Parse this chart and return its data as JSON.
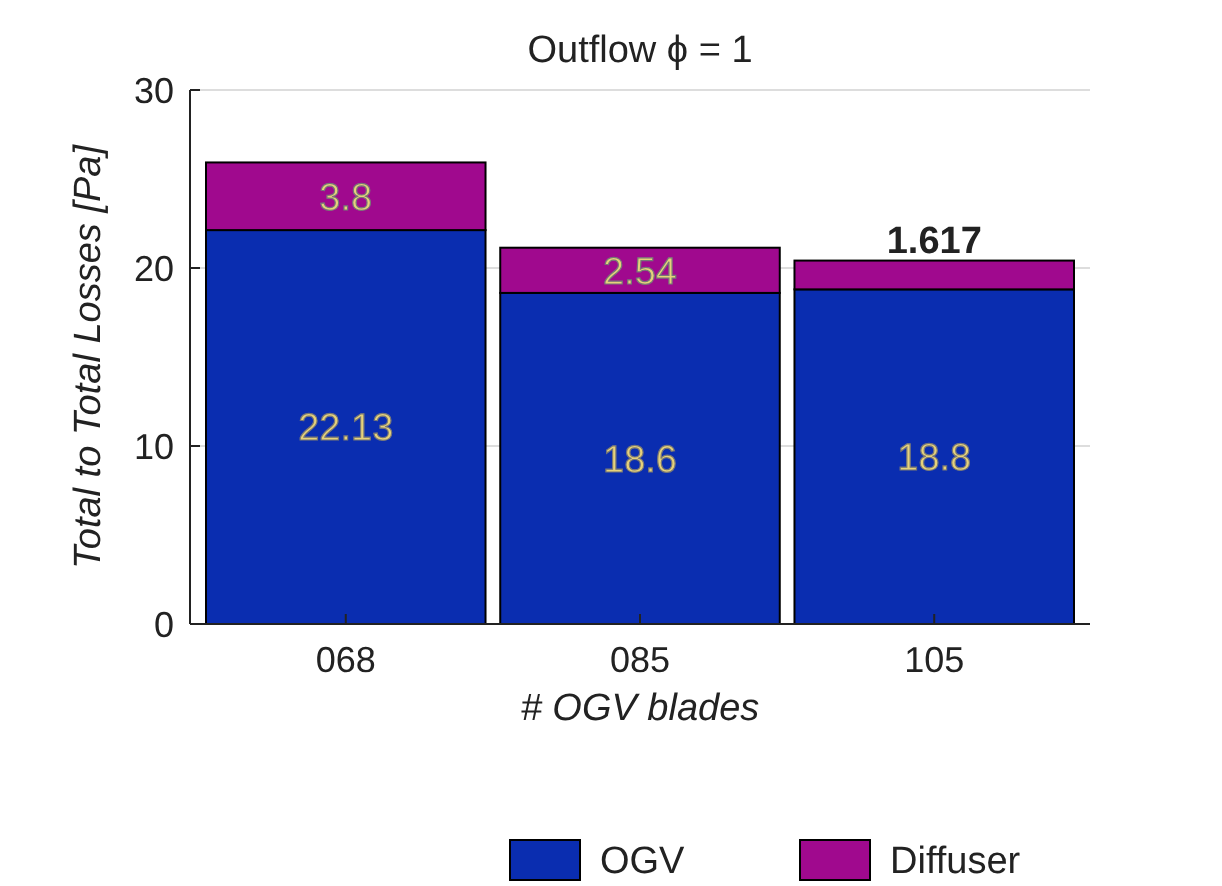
{
  "chart_data": {
    "type": "bar",
    "stacked": true,
    "title": "Outflow ϕ = 1",
    "xlabel": "# OGV blades",
    "ylabel": "Total to Total Losses [Pa]",
    "categories": [
      "068",
      "085",
      "105"
    ],
    "series": [
      {
        "name": "OGV",
        "color": "#0a2db0",
        "values": [
          22.13,
          18.6,
          18.8
        ]
      },
      {
        "name": "Diffuser",
        "color": "#a0098e",
        "values": [
          3.8,
          2.54,
          1.617
        ]
      }
    ],
    "data_labels": true,
    "ylim": [
      0,
      30
    ],
    "yticks": [
      0,
      10,
      20,
      30
    ],
    "grid": "y",
    "legend": "bottom"
  }
}
